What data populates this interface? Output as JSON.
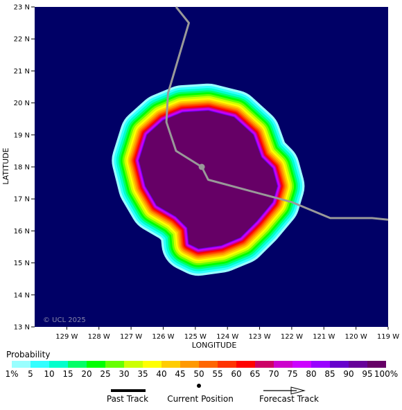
{
  "map": {
    "background_color": "#000066",
    "axes": {
      "xlabel": "LONGITUDE",
      "ylabel": "LATITUDE",
      "lon_range": [
        -130.0,
        -119.0
      ],
      "lat_range": [
        13,
        23
      ],
      "x_ticks": [
        {
          "lon": -129,
          "label": "129 W"
        },
        {
          "lon": -128,
          "label": "128 W"
        },
        {
          "lon": -127,
          "label": "127 W"
        },
        {
          "lon": -126,
          "label": "126 W"
        },
        {
          "lon": -125,
          "label": "125 W"
        },
        {
          "lon": -124,
          "label": "124 W"
        },
        {
          "lon": -123,
          "label": "123 W"
        },
        {
          "lon": -122,
          "label": "122 W"
        },
        {
          "lon": -121,
          "label": "121 W"
        },
        {
          "lon": -120,
          "label": "120 W"
        },
        {
          "lon": -119,
          "label": "119 W"
        }
      ],
      "y_ticks": [
        {
          "lat": 23,
          "label": "23 N"
        },
        {
          "lat": 22,
          "label": "22 N"
        },
        {
          "lat": 21,
          "label": "21 N"
        },
        {
          "lat": 20,
          "label": "20 N"
        },
        {
          "lat": 19,
          "label": "19 N"
        },
        {
          "lat": 18,
          "label": "18 N"
        },
        {
          "lat": 17,
          "label": "17 N"
        },
        {
          "lat": 16,
          "label": "16 N"
        },
        {
          "lat": 15,
          "label": "15 N"
        },
        {
          "lat": 14,
          "label": "14 N"
        },
        {
          "lat": 13,
          "label": "13 N"
        }
      ]
    },
    "watermark": "© UCL 2025",
    "track": {
      "color": "#999999",
      "points": [
        {
          "lon": -125.6,
          "lat": 23.0
        },
        {
          "lon": -125.2,
          "lat": 22.5
        },
        {
          "lon": -125.85,
          "lat": 20.3
        },
        {
          "lon": -125.9,
          "lat": 19.4
        },
        {
          "lon": -125.6,
          "lat": 18.5
        },
        {
          "lon": -124.8,
          "lat": 18.0
        },
        {
          "lon": -124.6,
          "lat": 17.6
        },
        {
          "lon": -122.0,
          "lat": 16.9
        },
        {
          "lon": -120.8,
          "lat": 16.4
        },
        {
          "lon": -119.5,
          "lat": 16.4
        },
        {
          "lon": -119.0,
          "lat": 16.35
        }
      ],
      "current_position": {
        "lon": -124.8,
        "lat": 18.0
      }
    },
    "probability_field": {
      "outline": [
        {
          "lon": -125.4,
          "lat": 19.7
        },
        {
          "lon": -124.6,
          "lat": 19.75
        },
        {
          "lon": -123.8,
          "lat": 19.55
        },
        {
          "lon": -123.2,
          "lat": 19.0
        },
        {
          "lon": -122.95,
          "lat": 18.3
        },
        {
          "lon": -122.6,
          "lat": 17.95
        },
        {
          "lon": -122.45,
          "lat": 17.4
        },
        {
          "lon": -122.6,
          "lat": 16.9
        },
        {
          "lon": -123.1,
          "lat": 16.3
        },
        {
          "lon": -123.6,
          "lat": 15.8
        },
        {
          "lon": -124.2,
          "lat": 15.55
        },
        {
          "lon": -124.9,
          "lat": 15.45
        },
        {
          "lon": -125.2,
          "lat": 15.6
        },
        {
          "lon": -125.25,
          "lat": 16.1
        },
        {
          "lon": -125.6,
          "lat": 16.45
        },
        {
          "lon": -126.2,
          "lat": 16.8
        },
        {
          "lon": -126.55,
          "lat": 17.4
        },
        {
          "lon": -126.75,
          "lat": 18.2
        },
        {
          "lon": -126.5,
          "lat": 19.0
        },
        {
          "lon": -126.0,
          "lat": 19.45
        }
      ],
      "band_outset_lon": [
        0.85,
        0.78,
        0.71,
        0.64,
        0.58,
        0.52,
        0.46,
        0.4,
        0.35,
        0.3,
        0.25,
        0.21,
        0.17,
        0.13,
        0.1,
        0.07,
        0.04,
        0.02,
        0.0
      ]
    }
  },
  "legend": {
    "title": "Probability",
    "colors": [
      "#99ffff",
      "#33ffff",
      "#00ffcc",
      "#00ff66",
      "#00ff00",
      "#66ff00",
      "#ccff00",
      "#ffff00",
      "#ffcc00",
      "#ff9900",
      "#ff6600",
      "#ff3300",
      "#ff0000",
      "#cc0066",
      "#cc00cc",
      "#cc00ff",
      "#9900ff",
      "#6600cc",
      "#660099",
      "#660066"
    ],
    "labels": [
      "1%",
      "5",
      "10",
      "15",
      "20",
      "25",
      "30",
      "35",
      "40",
      "45",
      "50",
      "55",
      "60",
      "65",
      "70",
      "75",
      "80",
      "85",
      "90",
      "95",
      "100%"
    ]
  },
  "key": {
    "past_track": "Past Track",
    "current_position": "Current Position",
    "forecast_track": "Forecast Track"
  }
}
